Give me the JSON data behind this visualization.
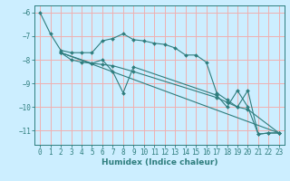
{
  "xlabel": "Humidex (Indice chaleur)",
  "ylabel": "",
  "bg_color": "#cceeff",
  "grid_color": "#f0b0b0",
  "line_color": "#2e7d7d",
  "xlim": [
    -0.5,
    23.5
  ],
  "ylim": [
    -11.6,
    -5.7
  ],
  "yticks": [
    -6,
    -7,
    -8,
    -9,
    -10,
    -11
  ],
  "xticks": [
    0,
    1,
    2,
    3,
    4,
    5,
    6,
    7,
    8,
    9,
    10,
    11,
    12,
    13,
    14,
    15,
    16,
    17,
    18,
    19,
    20,
    21,
    22,
    23
  ],
  "series": [
    {
      "x": [
        0,
        1,
        2,
        3,
        4,
        5,
        6,
        7,
        8,
        9,
        10,
        11,
        12,
        13,
        14,
        15,
        16,
        17,
        18,
        19,
        20,
        21,
        22,
        23
      ],
      "y": [
        -6.0,
        -6.9,
        -7.6,
        -7.7,
        -7.7,
        -7.7,
        -7.2,
        -7.1,
        -6.9,
        -7.15,
        -7.2,
        -7.3,
        -7.35,
        -7.5,
        -7.8,
        -7.8,
        -8.1,
        -9.4,
        -9.7,
        -10.0,
        -9.3,
        -11.15,
        -11.1,
        -11.1
      ]
    },
    {
      "x": [
        2,
        3,
        4,
        5,
        6,
        7,
        8,
        9,
        17,
        18,
        19,
        20,
        21,
        22,
        23
      ],
      "y": [
        -7.7,
        -8.0,
        -8.1,
        -8.15,
        -8.0,
        -8.5,
        -9.4,
        -8.3,
        -9.5,
        -10.0,
        -9.3,
        -10.0,
        -11.15,
        -11.1,
        -11.1
      ]
    },
    {
      "x": [
        2,
        5,
        6,
        7,
        9,
        17,
        18,
        19,
        20,
        23
      ],
      "y": [
        -7.7,
        -8.15,
        -8.2,
        -8.25,
        -8.5,
        -9.6,
        -9.8,
        -10.0,
        -10.1,
        -11.1
      ]
    },
    {
      "x": [
        2,
        23
      ],
      "y": [
        -7.7,
        -11.1
      ]
    }
  ]
}
